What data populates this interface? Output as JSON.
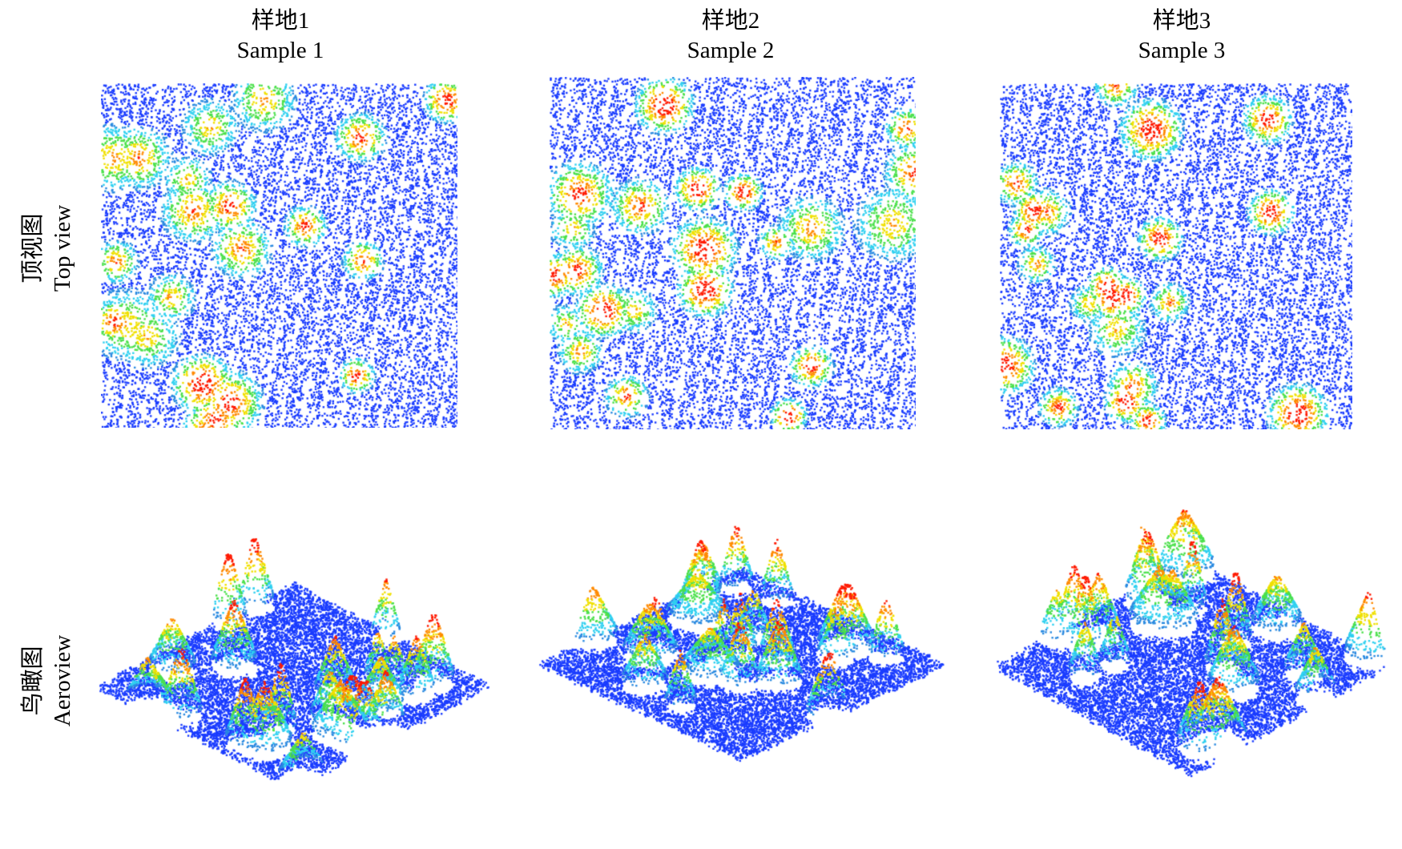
{
  "columns": [
    {
      "title_zh": "样地1",
      "title_en": "Sample 1"
    },
    {
      "title_zh": "样地2",
      "title_en": "Sample 2"
    },
    {
      "title_zh": "样地3",
      "title_en": "Sample 3"
    }
  ],
  "rows": [
    {
      "label_zh": "顶视图",
      "label_en": "Top view"
    },
    {
      "label_zh": "鸟瞰图",
      "label_en": "Aeroview"
    }
  ],
  "colors": {
    "ground_blue": "#1a3cff",
    "low_blue": "#2a8ae0",
    "mid_cyan": "#2fd0f0",
    "mid_green": "#4be04b",
    "mid_yellow": "#f0e000",
    "high_orange": "#ff8a00",
    "top_red": "#ff1a00"
  }
}
